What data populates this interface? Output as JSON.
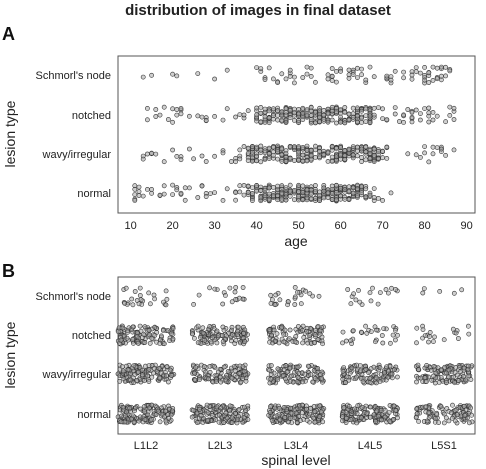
{
  "title": "distribution of images in final dataset",
  "chart_data": [
    {
      "panel": "A",
      "type": "scatter",
      "xlabel": "age",
      "ylabel": "lesion type",
      "xlim": [
        7,
        92
      ],
      "x_ticks": [
        10,
        20,
        30,
        40,
        50,
        60,
        70,
        80,
        90
      ],
      "categories": [
        "normal",
        "wavy/irregular",
        "notched",
        "Schmorl's node"
      ],
      "series": [
        {
          "category": "normal",
          "count": 300,
          "x_range": [
            10,
            72
          ],
          "peak": [
            38,
            68
          ]
        },
        {
          "category": "wavy/irregular",
          "count": 300,
          "x_range": [
            12,
            88
          ],
          "peak": [
            38,
            70
          ]
        },
        {
          "category": "notched",
          "count": 280,
          "x_range": [
            13,
            88
          ],
          "peak": [
            40,
            68
          ]
        },
        {
          "category": "Schmorl's node",
          "count": 90,
          "x_range": [
            13,
            88
          ],
          "peak": [
            40,
            86
          ]
        }
      ],
      "grid": false
    },
    {
      "panel": "B",
      "type": "scatter",
      "xlabel": "spinal level",
      "ylabel": "lesion type",
      "x_categories": [
        "L1L2",
        "L2L3",
        "L3L4",
        "L4L5",
        "L5S1"
      ],
      "categories": [
        "normal",
        "wavy/irregular",
        "notched",
        "Schmorl's node"
      ],
      "counts": {
        "normal": [
          140,
          140,
          150,
          140,
          100
        ],
        "wavy/irregular": [
          120,
          110,
          110,
          110,
          120
        ],
        "notched": [
          110,
          110,
          90,
          30,
          20
        ],
        "Schmorl's node": [
          25,
          18,
          25,
          18,
          5
        ]
      },
      "grid": false
    }
  ]
}
